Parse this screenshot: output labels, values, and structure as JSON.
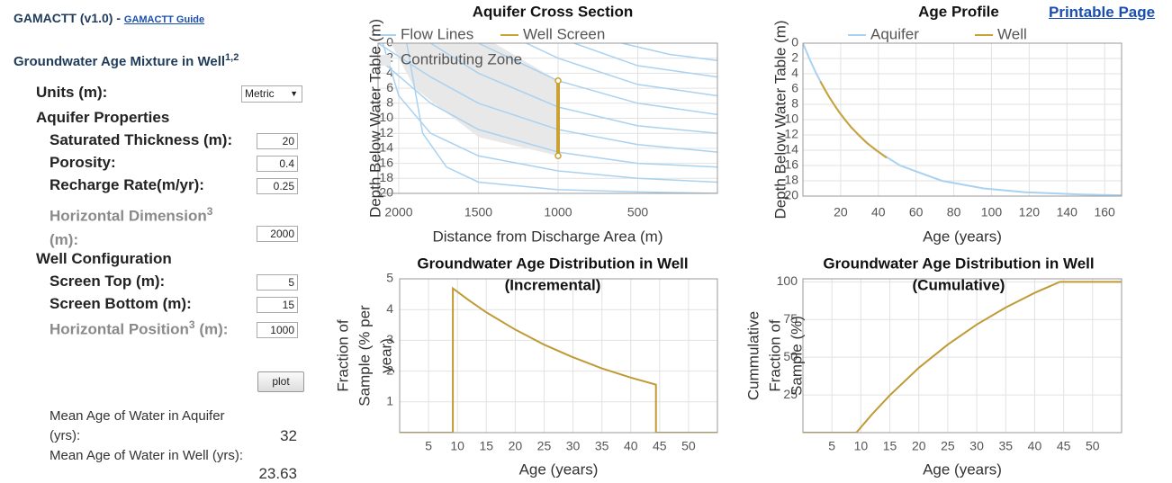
{
  "header": {
    "title": "GAMACTT (v1.0) - ",
    "guide_link": "GAMACTT Guide",
    "printable_link": "Printable Page"
  },
  "form": {
    "heading": "Groundwater Age Mixture in Well",
    "heading_sup": "1,2",
    "units": {
      "label": "Units (m):",
      "value": "Metric"
    },
    "aquifer": {
      "heading": "Aquifer Properties",
      "fields": [
        {
          "label": "Saturated Thickness (m):",
          "value": 20
        },
        {
          "label": "Porosity:",
          "value": 0.4
        },
        {
          "label": "Recharge Rate(m/yr):",
          "value": 0.25
        },
        {
          "label": "Horizontal Dimension",
          "sup": "3",
          "unit": "(m):",
          "value": 2000
        }
      ]
    },
    "well": {
      "heading": "Well Configuration",
      "fields": [
        {
          "label": "Screen Top (m):",
          "value": 5
        },
        {
          "label": "Screen Bottom (m):",
          "value": 15
        },
        {
          "label": "Horizontal Position",
          "sup": "3",
          "unit": "(m):",
          "value": 1000
        }
      ]
    },
    "button": "plot"
  },
  "results": [
    {
      "label": "Mean Age of Water in Aquifer (yrs):",
      "value": 32
    },
    {
      "label": "Mean Age of Water in Well (yrs):",
      "value": 23.63
    }
  ],
  "chart_data": [
    {
      "type": "line",
      "title": "Aquifer Cross Section",
      "xlabel": "Distance from Discharge Area (m)",
      "ylabel": [
        "Depth Below Water Table (m)"
      ],
      "xlim": [
        2130,
        0
      ],
      "xticks": [
        2000,
        1500,
        1000,
        500
      ],
      "ylim": [
        20,
        0
      ],
      "yticks": [
        0,
        2,
        4,
        6,
        8,
        10,
        12,
        14,
        16,
        18,
        20
      ],
      "grid": true,
      "series": [
        {
          "name": "Flow Lines",
          "color": "#a9d2f0",
          "lines": [
            {
              "x": [
                1950,
                1850,
                1700,
                1500,
                1000,
                500,
                0
              ],
              "values": [
                0,
                12,
                16.5,
                18.5,
                19.5,
                19.8,
                20
              ]
            },
            {
              "x": [
                2100,
                2000,
                1800,
                1500,
                1000,
                500,
                0
              ],
              "values": [
                0,
                7,
                12,
                15,
                17,
                18,
                18.5
              ]
            },
            {
              "x": [
                2130,
                1800,
                1500,
                1000,
                500,
                0
              ],
              "values": [
                2,
                8,
                11.5,
                14.5,
                16,
                16.5
              ]
            },
            {
              "x": [
                2130,
                1800,
                1500,
                1000,
                500,
                0
              ],
              "values": [
                0,
                4.5,
                8,
                11.5,
                13.5,
                14.5
              ]
            },
            {
              "x": [
                1800,
                1500,
                1000,
                500,
                0
              ],
              "values": [
                0,
                4,
                8.5,
                11,
                12
              ]
            },
            {
              "x": [
                1500,
                1200,
                1000,
                500,
                0
              ],
              "values": [
                0,
                3,
                5,
                8,
                9.5
              ]
            },
            {
              "x": [
                1200,
                1000,
                500,
                0
              ],
              "values": [
                0,
                2,
                5.5,
                7
              ]
            },
            {
              "x": [
                900,
                500,
                0
              ],
              "values": [
                0,
                3,
                4.5
              ]
            },
            {
              "x": [
                600,
                300,
                0
              ],
              "values": [
                0,
                1.5,
                2.3
              ]
            }
          ]
        },
        {
          "name": "Well Screen",
          "color": "#c9a233",
          "x": [
            1000,
            1000
          ],
          "values": [
            5,
            15
          ],
          "markers": true
        },
        {
          "name": "Contributing Zone",
          "color": "#e8e8e8",
          "style": "polygon",
          "x": [
            2050,
            1400,
            1200,
            1000,
            1000,
            1500,
            1900
          ],
          "values": [
            0,
            0,
            2.5,
            5,
            15,
            12.5,
            6
          ]
        }
      ]
    },
    {
      "type": "line",
      "title": "Age Profile",
      "xlabel": "Age (years)",
      "ylabel": [
        "Depth Below Water Table (m)"
      ],
      "xlim": [
        0,
        169
      ],
      "xticks": [
        20,
        40,
        60,
        80,
        100,
        120,
        140,
        160
      ],
      "ylim": [
        20,
        0
      ],
      "yticks": [
        0,
        2,
        4,
        6,
        8,
        10,
        12,
        14,
        16,
        18,
        20
      ],
      "grid": true,
      "series": [
        {
          "name": "Aquifer",
          "color": "#a9d2f0",
          "x": [
            0,
            3.37,
            7.14,
            11.41,
            16.35,
            22.18,
            29.32,
            38.53,
            51.5,
            73.68,
            95.86,
            118.04,
            147.7,
            169
          ],
          "values": [
            0,
            2,
            4,
            6,
            8,
            10,
            12,
            14,
            16,
            18,
            19,
            19.5,
            19.8,
            19.9
          ]
        },
        {
          "name": "Well",
          "color": "#c9a233",
          "x": [
            9.21,
            13.79,
            19.13,
            25.51,
            33.59,
            44.36
          ],
          "values": [
            5,
            7,
            9,
            11,
            13,
            15
          ]
        }
      ]
    },
    {
      "type": "line",
      "title": [
        "Groundwater Age Distribution in Well",
        "(Incremental)"
      ],
      "xlabel": "Age (years)",
      "ylabel": [
        "Fraction of",
        "Sample (% per",
        "year)"
      ],
      "xlim": [
        0,
        55
      ],
      "xticks": [
        5,
        10,
        15,
        20,
        25,
        30,
        35,
        40,
        45,
        50
      ],
      "ylim": [
        0,
        5
      ],
      "yticks": [
        1,
        2,
        3,
        4,
        5
      ],
      "grid": true,
      "series": [
        {
          "color": "#bf9a35",
          "x": [
            0,
            9.21,
            9.21,
            12,
            15,
            20,
            25,
            30,
            35,
            40,
            44.36,
            44.36,
            55
          ],
          "values": [
            0,
            0,
            4.69,
            4.3,
            3.91,
            3.35,
            2.86,
            2.45,
            2.09,
            1.79,
            1.56,
            0,
            0
          ]
        }
      ]
    },
    {
      "type": "line",
      "title": [
        "Groundwater Age Distribution in Well",
        "(Cumulative)"
      ],
      "xlabel": "Age (years)",
      "ylabel": [
        "Cummulative",
        "Fraction of",
        "Sample (%)"
      ],
      "xlim": [
        0,
        55
      ],
      "xticks": [
        5,
        10,
        15,
        20,
        25,
        30,
        35,
        40,
        45,
        50
      ],
      "ylim": [
        0,
        102
      ],
      "yticks": [
        25,
        50,
        75,
        100
      ],
      "grid": true,
      "series": [
        {
          "color": "#bf9a35",
          "x": [
            0,
            9.21,
            12,
            15,
            20,
            25,
            30,
            35,
            40,
            44.36,
            55
          ],
          "values": [
            0,
            0,
            12.5,
            24.8,
            43,
            58.4,
            71.7,
            83,
            92.7,
            100,
            100
          ]
        }
      ]
    }
  ]
}
